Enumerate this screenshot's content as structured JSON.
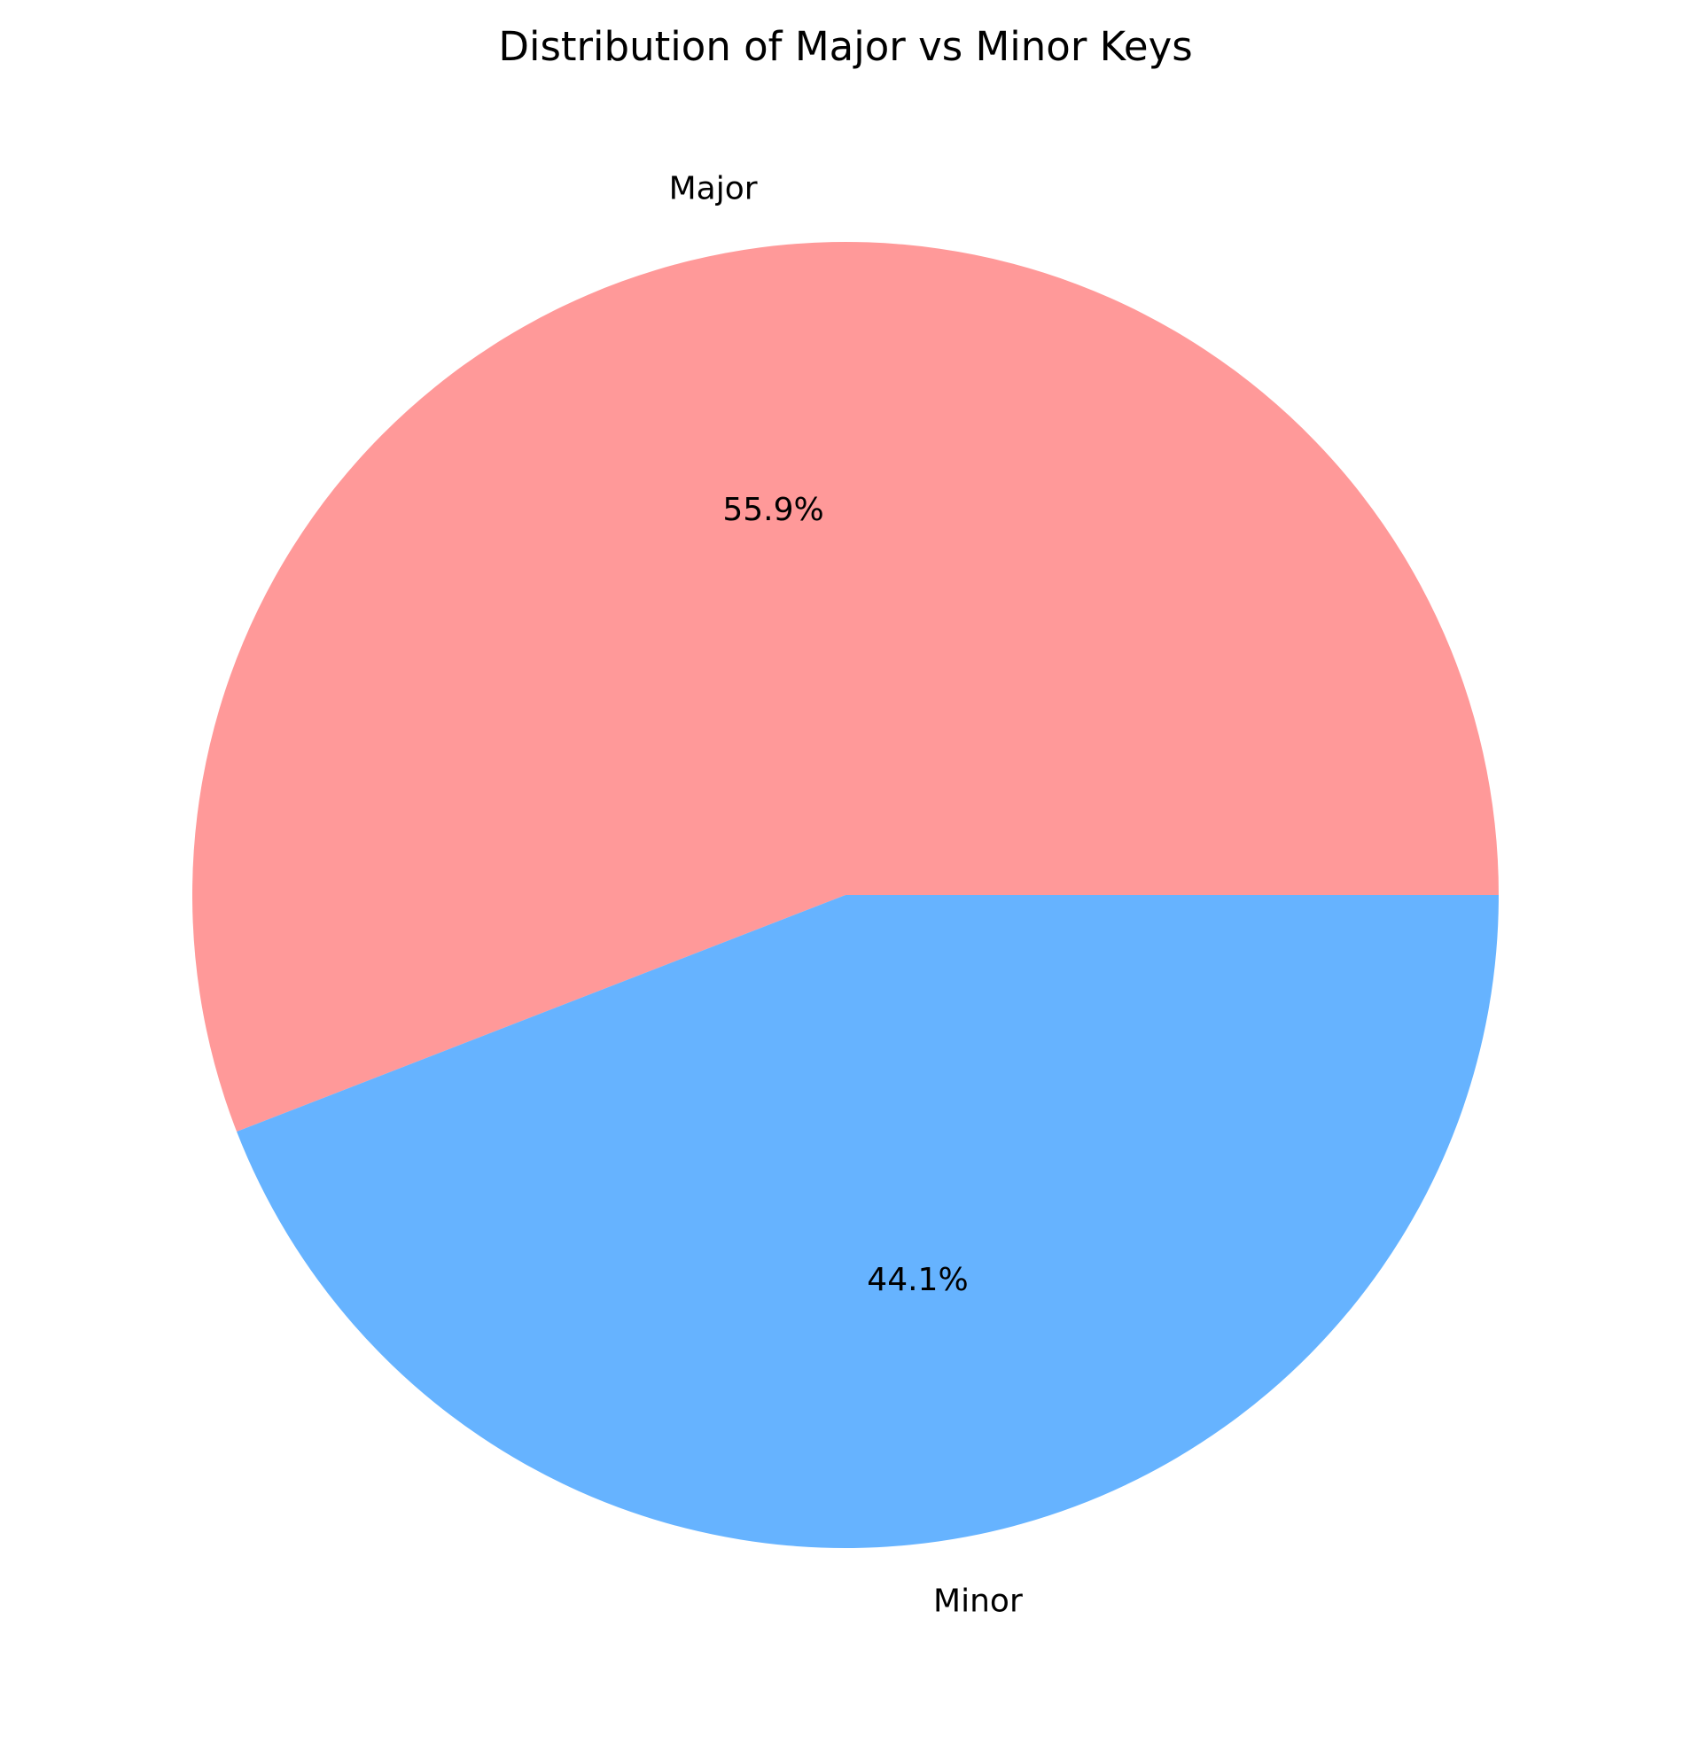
{
  "chart_data": {
    "type": "pie",
    "title": "Distribution of Major vs Minor Keys",
    "labels": [
      "Major",
      "Minor"
    ],
    "values": [
      55.9,
      44.1
    ],
    "value_labels": [
      "55.9%",
      "44.1%"
    ],
    "colors": [
      "#ff9999",
      "#66b3ff"
    ],
    "start_angle_deg": 0,
    "direction": "counterclockwise",
    "legend": "none"
  }
}
